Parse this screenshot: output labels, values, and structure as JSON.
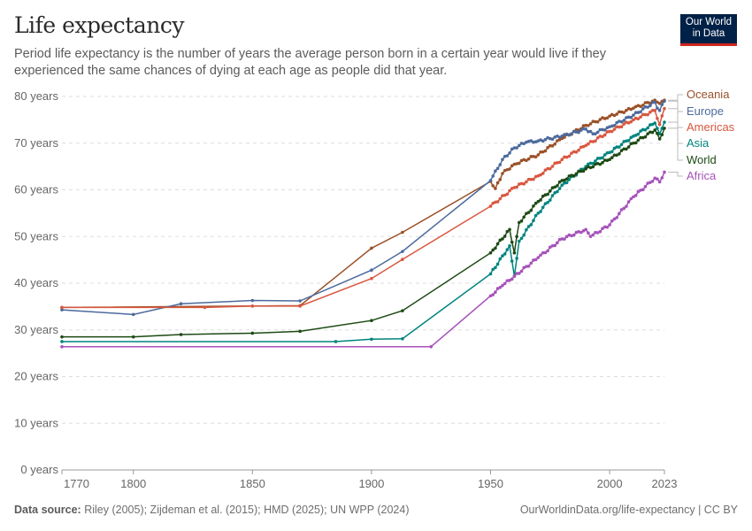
{
  "title": "Life expectancy",
  "subtitle": "Period life expectancy is the number of years the average person born in a certain year would live if they experienced the same chances of dying at each age as people did that year.",
  "logo": {
    "line1": "Our World",
    "line2": "in Data"
  },
  "footer": {
    "source_label": "Data source:",
    "source": "Riley (2005); Zijdeman et al. (2015); HMD (2025); UN WPP (2024)",
    "right": "OurWorldinData.org/life-expectancy | CC BY"
  },
  "chart_data": {
    "type": "line",
    "xlim": [
      1770,
      2023
    ],
    "ylim": [
      0,
      80
    ],
    "x_ticks": [
      "1770",
      "1800",
      "1850",
      "1900",
      "1950",
      "2000",
      "2023"
    ],
    "y_ticks": [
      "0 years",
      "10 years",
      "20 years",
      "30 years",
      "40 years",
      "50 years",
      "60 years",
      "70 years",
      "80 years"
    ],
    "grid": "horizontal dashed",
    "legend": "right (line labels)",
    "series": [
      {
        "name": "Oceania",
        "color": "#9a5129",
        "x": [
          1770,
          1870,
          1900,
          1913,
          1950,
          1952,
          1955,
          1960,
          1970,
          1980,
          1990,
          2000,
          2010,
          2019,
          2021,
          2023
        ],
        "y": [
          34.8,
          35.2,
          47.5,
          50.9,
          61.8,
          60.3,
          63.5,
          65.5,
          67.5,
          71,
          73.8,
          75.8,
          77.5,
          79.2,
          78.5,
          79.2
        ]
      },
      {
        "name": "Europe",
        "color": "#4c6a9c",
        "x": [
          1770,
          1800,
          1820,
          1850,
          1870,
          1900,
          1913,
          1950,
          1955,
          1960,
          1965,
          1970,
          1980,
          1990,
          1993,
          2000,
          2010,
          2019,
          2020,
          2021,
          2023
        ],
        "y": [
          34.3,
          33.3,
          35.6,
          36.3,
          36.2,
          42.8,
          46.8,
          62,
          66.5,
          69,
          70.2,
          70.5,
          71.5,
          73,
          72,
          73.5,
          76,
          78.8,
          77.5,
          77,
          79
        ]
      },
      {
        "name": "Americas",
        "color": "#d9573f",
        "x": [
          1770,
          1830,
          1850,
          1870,
          1900,
          1913,
          1950,
          1960,
          1970,
          1980,
          1990,
          2000,
          2010,
          2019,
          2021,
          2023
        ],
        "y": [
          34.8,
          34.8,
          35.1,
          35.1,
          41,
          45.1,
          56.5,
          60.5,
          63,
          66.5,
          69.5,
          72.5,
          75,
          77,
          74,
          77.4
        ]
      },
      {
        "name": "Asia",
        "color": "#00847e",
        "x": [
          1770,
          1885,
          1900,
          1913,
          1950,
          1958,
          1960,
          1962,
          1970,
          1980,
          1990,
          2000,
          2010,
          2019,
          2021,
          2023
        ],
        "y": [
          27.5,
          27.5,
          28,
          28.1,
          42,
          48,
          41.5,
          49,
          55,
          61,
          65,
          68,
          71.5,
          74.3,
          72,
          74.5
        ]
      },
      {
        "name": "World",
        "color": "#1d4a14",
        "x": [
          1770,
          1800,
          1820,
          1850,
          1870,
          1900,
          1913,
          1950,
          1958,
          1960,
          1962,
          1970,
          1980,
          1990,
          2000,
          2010,
          2019,
          2021,
          2023
        ],
        "y": [
          28.5,
          28.5,
          29,
          29.3,
          29.7,
          32,
          34.1,
          46.5,
          51.5,
          46.5,
          53,
          57.5,
          62,
          64.5,
          66.5,
          70,
          72.8,
          70.9,
          73.2
        ]
      },
      {
        "name": "Africa",
        "color": "#a652ba",
        "x": [
          1770,
          1925,
          1950,
          1955,
          1960,
          1970,
          1980,
          1990,
          1992,
          2000,
          2010,
          2019,
          2021,
          2023
        ],
        "y": [
          26.4,
          26.4,
          37.3,
          39.5,
          41.5,
          45.5,
          49.5,
          51.5,
          50,
          52.5,
          58.5,
          62.5,
          61.7,
          63.8
        ]
      }
    ]
  }
}
